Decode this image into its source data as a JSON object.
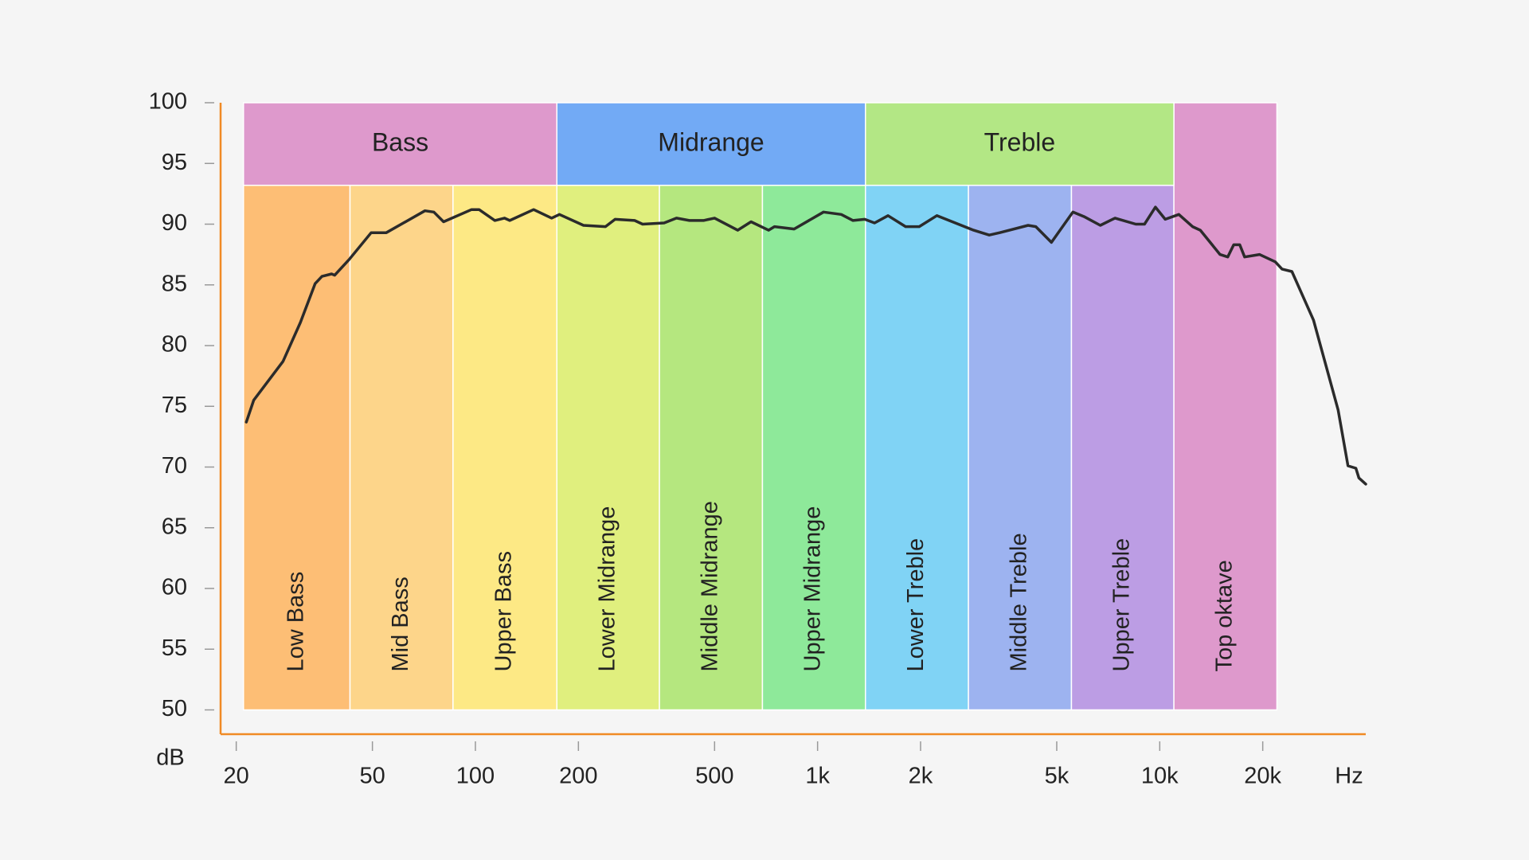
{
  "chart_data": {
    "type": "line",
    "xscale": "log",
    "xlabel": "Hz",
    "ylabel": "dB",
    "xlim": [
      18,
      40000
    ],
    "ylim": [
      48,
      100
    ],
    "xticks": [
      20,
      50,
      100,
      200,
      500,
      {
        "value": 1000,
        "label": "1k"
      },
      {
        "value": 2000,
        "label": "2k"
      },
      {
        "value": 5000,
        "label": "5k"
      },
      {
        "value": 10000,
        "label": "10k"
      },
      {
        "value": 20000,
        "label": "20k"
      }
    ],
    "yticks": [
      50,
      55,
      60,
      65,
      70,
      75,
      80,
      85,
      90,
      95,
      100
    ],
    "axis_color": "#f08a24",
    "groups": [
      {
        "name": "Bass",
        "from": 21,
        "to": 173,
        "ylim": [
          93.2,
          100
        ],
        "color": "#de99cc"
      },
      {
        "name": "Midrange",
        "from": 173,
        "to": 1380,
        "ylim": [
          93.2,
          100
        ],
        "color": "#72aaf5"
      },
      {
        "name": "Treble",
        "from": 1380,
        "to": 11000,
        "ylim": [
          93.2,
          100
        ],
        "color": "#b3e785"
      }
    ],
    "bands": [
      {
        "name": "Low Bass",
        "from": 21,
        "to": 43,
        "ylim": [
          50,
          93.2
        ],
        "color": "#fdbe75"
      },
      {
        "name": "Mid Bass",
        "from": 43,
        "to": 86,
        "ylim": [
          50,
          93.2
        ],
        "color": "#fdd58a"
      },
      {
        "name": "Upper Bass",
        "from": 86,
        "to": 173,
        "ylim": [
          50,
          93.2
        ],
        "color": "#fde985"
      },
      {
        "name": "Lower Midrange",
        "from": 173,
        "to": 345,
        "ylim": [
          50,
          93.2
        ],
        "color": "#e0ef7e"
      },
      {
        "name": "Middle Midrange",
        "from": 345,
        "to": 690,
        "ylim": [
          50,
          93.2
        ],
        "color": "#b5e77f"
      },
      {
        "name": "Upper Midrange",
        "from": 690,
        "to": 1380,
        "ylim": [
          50,
          93.2
        ],
        "color": "#8ee99a"
      },
      {
        "name": "Lower Treble",
        "from": 1380,
        "to": 2760,
        "ylim": [
          50,
          93.2
        ],
        "color": "#80d3f5"
      },
      {
        "name": "Middle Treble",
        "from": 2760,
        "to": 5520,
        "ylim": [
          50,
          93.2
        ],
        "color": "#9db3f0"
      },
      {
        "name": "Upper Treble",
        "from": 5520,
        "to": 11000,
        "ylim": [
          50,
          93.2
        ],
        "color": "#bc9de4"
      },
      {
        "name": "Top oktave",
        "from": 11000,
        "to": 22000,
        "ylim": [
          50,
          100
        ],
        "color": "#de99cc"
      }
    ],
    "x": [
      21.4,
      22.5,
      27.4,
      30.8,
      34,
      35.6,
      38,
      38.8,
      42.8,
      49.6,
      54.9,
      71.2,
      75.6,
      80.7,
      97.4,
      102.5,
      114,
      121.6,
      126,
      148,
      167,
      176,
      207,
      240,
      256,
      292,
      308,
      356,
      387,
      422,
      464,
      500,
      584,
      639,
      719,
      748,
      854,
      1041,
      1173,
      1269,
      1374,
      1467,
      1606,
      1808,
      1982,
      2231,
      2858,
      3174,
      3407,
      4123,
      4344,
      4825,
      5575,
      6036,
      6703,
      7402,
      8508,
      9024,
      9716,
      10376,
      11370,
      12470,
      13140,
      15000,
      15800,
      16450,
      17130,
      17700,
      19570,
      21760,
      22780,
      24340,
      28150,
      33220,
      35500,
      37430,
      38200,
      40000
    ],
    "series": [
      {
        "color": "#2b2b2b",
        "values": [
          73.7,
          75.5,
          78.7,
          81.9,
          85.1,
          85.7,
          85.9,
          85.8,
          87.1,
          89.3,
          89.3,
          91.1,
          91.0,
          90.2,
          91.2,
          91.2,
          90.3,
          90.5,
          90.3,
          91.2,
          90.5,
          90.8,
          89.9,
          89.8,
          90.4,
          90.3,
          90.0,
          90.1,
          90.5,
          90.3,
          90.3,
          90.5,
          89.5,
          90.2,
          89.5,
          89.8,
          89.6,
          91.0,
          90.8,
          90.3,
          90.4,
          90.1,
          90.7,
          89.8,
          89.8,
          90.7,
          89.5,
          89.1,
          89.3,
          89.9,
          89.8,
          88.5,
          91.0,
          90.6,
          89.9,
          90.5,
          90.0,
          90.0,
          91.4,
          90.4,
          90.8,
          89.8,
          89.5,
          87.5,
          87.3,
          88.3,
          88.3,
          87.3,
          87.5,
          86.9,
          86.3,
          86.1,
          82.1,
          74.7,
          70.1,
          69.9,
          69.1,
          68.6
        ]
      }
    ]
  }
}
